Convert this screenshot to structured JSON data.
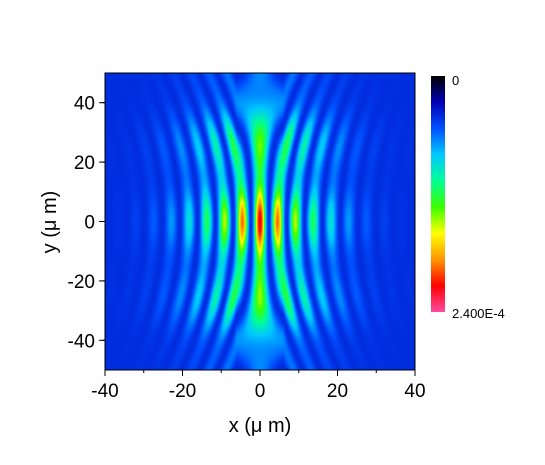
{
  "chart_data": {
    "type": "heatmap",
    "title": "",
    "xlabel": "x (μ m)",
    "ylabel": "y (μ m)",
    "xlim": [
      -40,
      40
    ],
    "ylim": [
      -50,
      50
    ],
    "xticks": [
      -40,
      -20,
      0,
      20,
      40
    ],
    "yticks": [
      -40,
      -20,
      0,
      20,
      40
    ],
    "colorbar": {
      "min_label": "0",
      "max_label": "2.400E-4",
      "min": 0,
      "max": 0.00024,
      "colormap": [
        "#000000",
        "#0000b4",
        "#0050ff",
        "#00c8ff",
        "#00ff96",
        "#3cff00",
        "#ffff00",
        "#ff9600",
        "#ff0000",
        "#ff4aa0"
      ]
    },
    "pattern": {
      "description_values": "interference fringes centered at x=0, peak intensity near (0, 0)",
      "fringe_spacing_um": 4.6,
      "peak_value": 0.00024
    }
  }
}
